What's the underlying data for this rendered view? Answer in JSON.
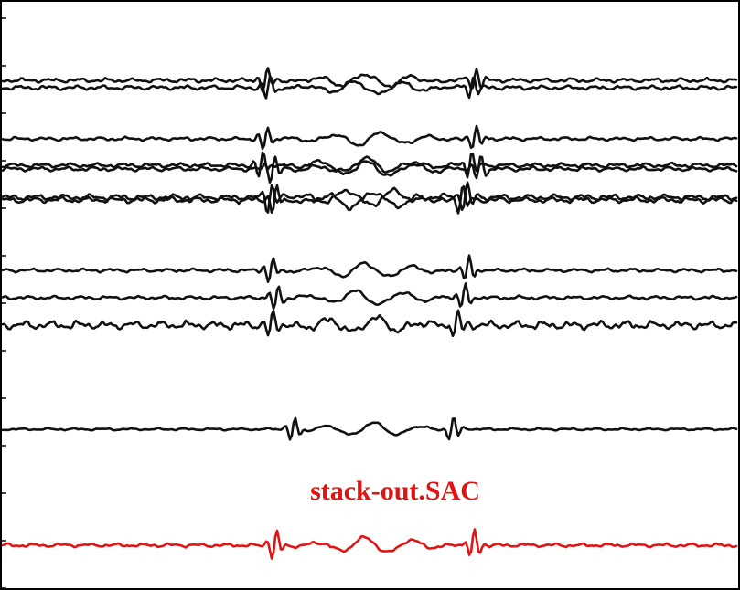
{
  "chart_data": {
    "type": "line",
    "title": "",
    "xlabel": "",
    "ylabel": "",
    "grid": false,
    "legend": "none",
    "colors": {
      "trace": "#111111",
      "stack": "#e01414",
      "frame": "#000000"
    },
    "stack_label": "stack-out.SAC",
    "series": [
      {
        "color": "#111111",
        "offset": 88,
        "arrivals": [
          290,
          520
        ],
        "amp": 1.0,
        "noise": 0.6
      },
      {
        "color": "#111111",
        "offset": 96,
        "arrivals": [
          293,
          517
        ],
        "amp": 1.0,
        "noise": 0.6
      },
      {
        "color": "#111111",
        "offset": 152,
        "arrivals": [
          290,
          520
        ],
        "amp": 1.0,
        "noise": 0.5
      },
      {
        "color": "#111111",
        "offset": 181,
        "arrivals": [
          285,
          515
        ],
        "amp": 1.1,
        "noise": 0.6
      },
      {
        "color": "#111111",
        "offset": 185,
        "arrivals": [
          298,
          525
        ],
        "amp": 1.1,
        "noise": 0.6
      },
      {
        "color": "#111111",
        "offset": 216,
        "arrivals": [
          295,
          510
        ],
        "amp": 1.2,
        "noise": 0.8
      },
      {
        "color": "#111111",
        "offset": 219,
        "arrivals": [
          300,
          505
        ],
        "amp": 1.2,
        "noise": 0.8
      },
      {
        "color": "#111111",
        "offset": 296,
        "arrivals": [
          296,
          512
        ],
        "amp": 1.1,
        "noise": 0.5
      },
      {
        "color": "#111111",
        "offset": 326,
        "arrivals": [
          302,
          508
        ],
        "amp": 1.1,
        "noise": 0.5
      },
      {
        "color": "#111111",
        "offset": 356,
        "arrivals": [
          296,
          500
        ],
        "amp": 1.1,
        "noise": 1.1
      },
      {
        "color": "#111111",
        "offset": 470,
        "arrivals": [
          320,
          495
        ],
        "amp": 1.0,
        "noise": 0.3
      },
      {
        "color": "#e01414",
        "offset": 597,
        "arrivals": [
          300,
          518
        ],
        "amp": 1.2,
        "noise": 0.5
      }
    ]
  }
}
